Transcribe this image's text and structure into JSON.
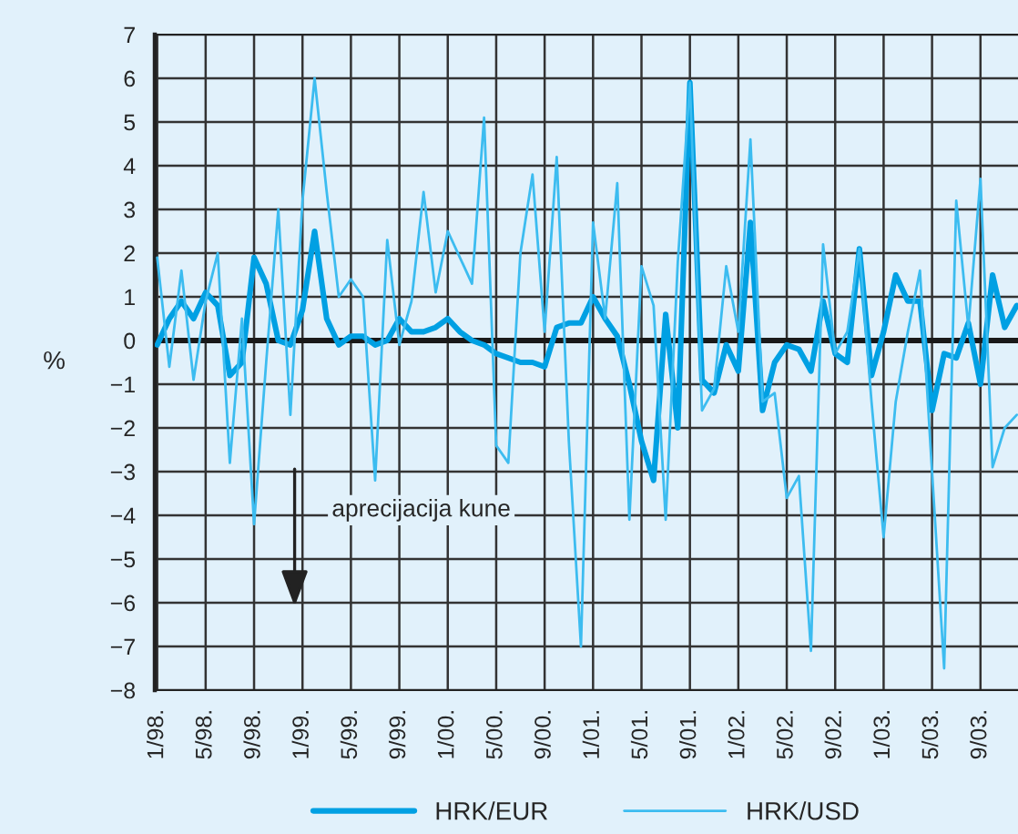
{
  "chart_data": {
    "type": "line",
    "ylabel": "%",
    "categories": [
      "1/98.",
      null,
      null,
      null,
      "5/98.",
      null,
      null,
      null,
      "9/98.",
      null,
      null,
      null,
      "1/99.",
      null,
      null,
      null,
      "5/99.",
      null,
      null,
      null,
      "9/99.",
      null,
      null,
      null,
      "1/00.",
      null,
      null,
      null,
      "5/00.",
      null,
      null,
      null,
      "9/00.",
      null,
      null,
      null,
      "1/01.",
      null,
      null,
      null,
      "5/01.",
      null,
      null,
      null,
      "9/01.",
      null,
      null,
      null,
      "1/02.",
      null,
      null,
      null,
      "5/02.",
      null,
      null,
      null,
      "9/02.",
      null,
      null,
      null,
      "1/03.",
      null,
      null,
      null,
      "5/03.",
      null,
      null,
      null,
      "9/03.",
      null,
      null,
      null
    ],
    "series": [
      {
        "name": "HRK/EUR",
        "color": "#00a0e3",
        "values": [
          -0.1,
          0.5,
          0.9,
          0.5,
          1.1,
          0.8,
          -0.8,
          -0.5,
          1.9,
          1.3,
          0,
          -0.1,
          0.7,
          2.5,
          0.5,
          -0.1,
          0.1,
          0.1,
          -0.1,
          0,
          0.5,
          0.2,
          0.2,
          0.3,
          0.5,
          0.2,
          0,
          -0.1,
          -0.3,
          -0.4,
          -0.5,
          -0.5,
          -0.6,
          0.3,
          0.4,
          0.4,
          1.0,
          0.5,
          0.1,
          -1.0,
          -2.3,
          -3.2,
          0.6,
          -2.0,
          5.9,
          -0.9,
          -1.2,
          -0.1,
          -0.7,
          2.7,
          -1.6,
          -0.5,
          -0.1,
          -0.2,
          -0.7,
          0.9,
          -0.3,
          -0.5,
          2.1,
          -0.8,
          0.2,
          1.5,
          0.9,
          0.9,
          -1.6,
          -0.3,
          -0.4,
          0.4,
          -1.0,
          1.5,
          0.3,
          0.8
        ]
      },
      {
        "name": "HRK/USD",
        "color": "#3cbcf0",
        "values": [
          1.9,
          -0.6,
          1.6,
          -0.9,
          0.9,
          2.0,
          -2.8,
          0.5,
          -4.2,
          -0.5,
          3.0,
          -1.7,
          3.2,
          6.0,
          3.4,
          1.0,
          1.4,
          1.0,
          -3.2,
          2.3,
          -0.1,
          0.9,
          3.4,
          1.1,
          2.5,
          1.9,
          1.3,
          5.1,
          -2.4,
          -2.8,
          2.0,
          3.8,
          0.2,
          4.2,
          -2.3,
          -7.0,
          2.7,
          0.5,
          3.6,
          -4.1,
          1.7,
          0.8,
          -4.1,
          1.8,
          5.9,
          -1.6,
          -1.1,
          1.7,
          0.2,
          4.6,
          -1.4,
          -1.2,
          -3.6,
          -3.1,
          -7.1,
          2.2,
          -0.3,
          0.2,
          2.1,
          -1.4,
          -4.5,
          -1.4,
          0.2,
          1.6,
          -3.0,
          -7.5,
          3.2,
          0.3,
          3.7,
          -2.9,
          -2.0,
          -1.7
        ]
      }
    ],
    "ylim": [
      -8,
      7
    ],
    "yticks": [
      {
        "value": -8,
        "label": "−8"
      },
      {
        "value": -7,
        "label": "−7"
      },
      {
        "value": -6,
        "label": "−6"
      },
      {
        "value": -5,
        "label": "−5"
      },
      {
        "value": -4,
        "label": "−4"
      },
      {
        "value": -3,
        "label": "−3"
      },
      {
        "value": -2,
        "label": "−2"
      },
      {
        "value": -1,
        "label": "−1"
      },
      0,
      1,
      2,
      3,
      4,
      5,
      6,
      7
    ],
    "ref_lines": [
      {
        "axis": "y",
        "value": 0,
        "color": "#1a1a1a"
      }
    ],
    "annotations": [
      "aprecijacija kune"
    ],
    "grid": true,
    "legend": "bottom"
  }
}
